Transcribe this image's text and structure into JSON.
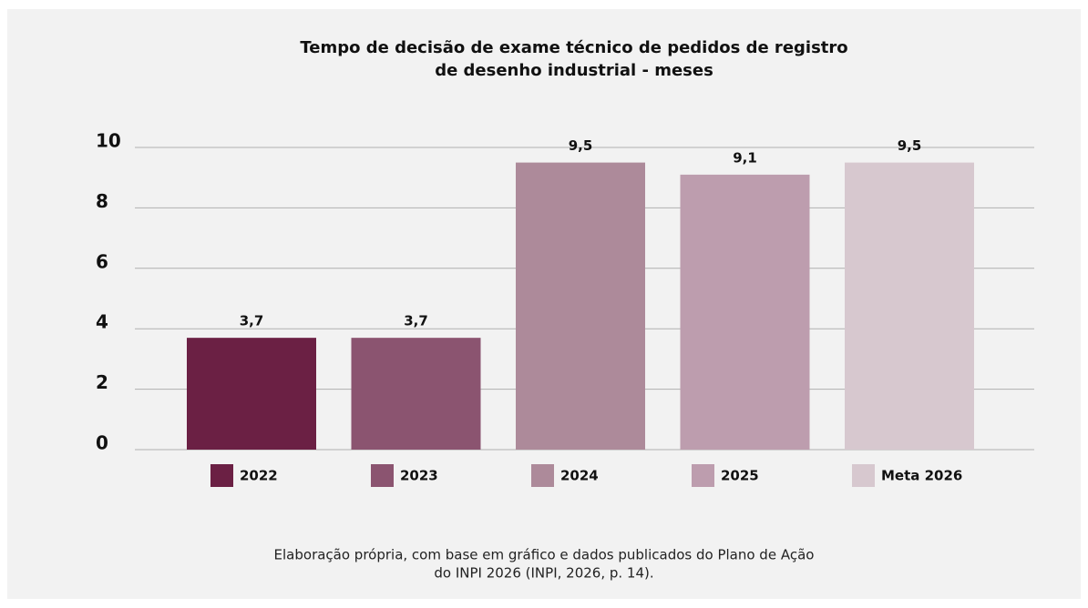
{
  "chart_data": {
    "type": "bar",
    "title": [
      "Tempo de decisão de exame técnico de pedidos de registro",
      "de desenho industrial - meses"
    ],
    "categories": [
      "2022",
      "2023",
      "2024",
      "2025",
      "Meta 2026"
    ],
    "values": [
      3.7,
      3.7,
      9.5,
      9.1,
      9.5
    ],
    "value_labels": [
      "3,7",
      "3,7",
      "9,5",
      "9,1",
      "9,5"
    ],
    "colors": [
      "#6b2044",
      "#8b5470",
      "#ad8a9a",
      "#bd9dae",
      "#d7c8cf"
    ],
    "ylim": [
      0,
      10
    ],
    "yticks": [
      0,
      2,
      4,
      6,
      8,
      10
    ],
    "grid": true,
    "note": [
      "Elaboração própria, com base em gráfico e dados publicados do Plano de Ação",
      "do INPI 2026 (INPI, 2026, p. 14)."
    ]
  }
}
